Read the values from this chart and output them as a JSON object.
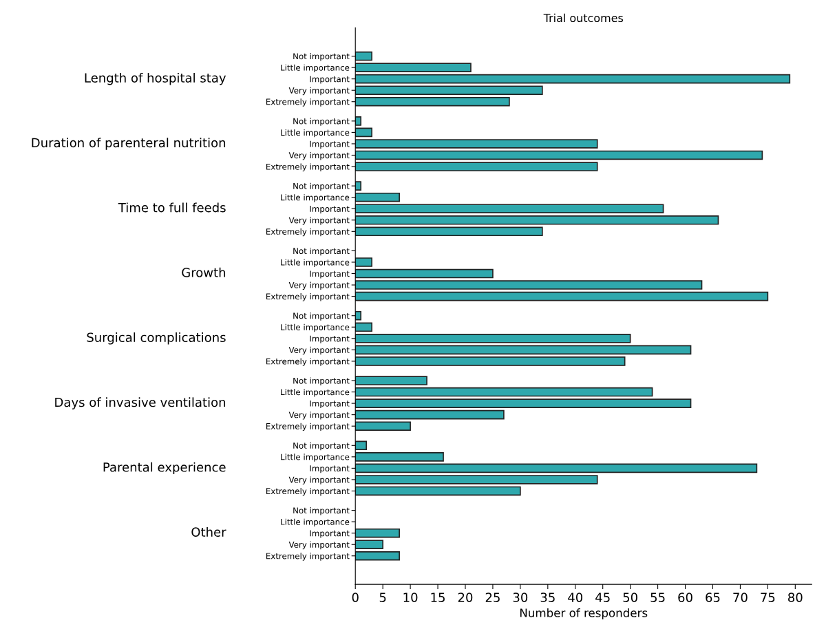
{
  "chart_data": {
    "type": "bar",
    "orientation": "horizontal",
    "title": "Trial outcomes",
    "xlabel": "Number of responders",
    "categories": [
      "Not important",
      "Little importance",
      "Important",
      "Very important",
      "Extremely important",
      "Not important",
      "Little importance",
      "Important",
      "Very important",
      "Extremely important",
      "Not important",
      "Little importance",
      "Important",
      "Very important",
      "Extremely important",
      "Not important",
      "Little importance",
      "Important",
      "Very important",
      "Extremely important",
      "Not important",
      "Little importance",
      "Important",
      "Very important",
      "Extremely important",
      "Not important",
      "Little importance",
      "Important",
      "Very important",
      "Extremely important",
      "Not important",
      "Little importance",
      "Important",
      "Very important",
      "Extremely important",
      "Not important",
      "Little importance",
      "Important",
      "Very important",
      "Extremely important"
    ],
    "values": [
      3,
      21,
      79,
      34,
      28,
      1,
      3,
      44,
      74,
      44,
      1,
      8,
      56,
      66,
      34,
      0,
      3,
      25,
      63,
      75,
      1,
      3,
      50,
      61,
      49,
      13,
      54,
      61,
      27,
      10,
      2,
      16,
      73,
      44,
      30,
      0,
      0,
      8,
      5,
      8
    ],
    "color": "#2fa8ad",
    "annotations": [
      "Length of hospital stay",
      "Duration of parenteral nutrition",
      "Time to full feeds",
      "Growth",
      "Surgical complications",
      "Days of invasive ventilation",
      "Parental experience",
      "Other"
    ],
    "xlim": [
      0,
      83
    ],
    "xticks": [
      0,
      5,
      10,
      15,
      20,
      25,
      30,
      35,
      40,
      45,
      50,
      55,
      60,
      65,
      70,
      75,
      80
    ],
    "grid": false
  }
}
